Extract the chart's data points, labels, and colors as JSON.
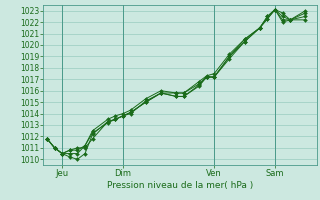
{
  "xlabel": "Pression niveau de la mer( hPa )",
  "bg_color": "#cce8e0",
  "grid_color": "#99ccc0",
  "line_color": "#1a6b1a",
  "marker_color": "#1a6b1a",
  "ylim": [
    1009.5,
    1023.5
  ],
  "yticks": [
    1010,
    1011,
    1012,
    1013,
    1014,
    1015,
    1016,
    1017,
    1018,
    1019,
    1020,
    1021,
    1022,
    1023
  ],
  "xtick_labels": [
    "Jeu",
    "Dim",
    "Ven",
    "Sam"
  ],
  "lines": [
    {
      "x": [
        0,
        1,
        2,
        3,
        4,
        5,
        6,
        8,
        9,
        10,
        11,
        13,
        15,
        17,
        18,
        20,
        21,
        22,
        24,
        26,
        28,
        29,
        30,
        31,
        32,
        34
      ],
      "y": [
        1011.8,
        1011.0,
        1010.5,
        1010.8,
        1011.0,
        1011.0,
        1011.8,
        1013.3,
        1013.5,
        1013.8,
        1014.1,
        1015.0,
        1015.8,
        1015.8,
        1015.8,
        1016.6,
        1017.2,
        1017.2,
        1019.0,
        1020.5,
        1021.5,
        1022.5,
        1023.1,
        1022.8,
        1022.2,
        1023.0
      ]
    },
    {
      "x": [
        0,
        1,
        2,
        3,
        4,
        5,
        6,
        8,
        9,
        10,
        11,
        13,
        15,
        17,
        18,
        20,
        21,
        22,
        24,
        26,
        28,
        29,
        30,
        31,
        32,
        34
      ],
      "y": [
        1011.8,
        1011.0,
        1010.5,
        1010.2,
        1010.0,
        1010.5,
        1012.2,
        1013.3,
        1013.5,
        1013.8,
        1014.1,
        1015.0,
        1015.8,
        1015.5,
        1015.5,
        1016.4,
        1017.2,
        1017.2,
        1018.8,
        1020.3,
        1021.5,
        1022.3,
        1023.1,
        1022.5,
        1022.2,
        1022.2
      ]
    },
    {
      "x": [
        0,
        1,
        2,
        3,
        4,
        5,
        6,
        8,
        9,
        10,
        11,
        13,
        15,
        17,
        18,
        20,
        21,
        22,
        24,
        26,
        28,
        29,
        30,
        31,
        32,
        34
      ],
      "y": [
        1011.8,
        1011.0,
        1010.5,
        1010.8,
        1010.8,
        1011.2,
        1012.5,
        1013.5,
        1013.8,
        1014.0,
        1014.3,
        1015.3,
        1016.0,
        1015.8,
        1015.8,
        1016.8,
        1017.3,
        1017.5,
        1019.2,
        1020.5,
        1021.5,
        1022.5,
        1023.1,
        1022.0,
        1022.2,
        1022.8
      ]
    },
    {
      "x": [
        0,
        1,
        2,
        3,
        4,
        5,
        6,
        8,
        9,
        10,
        11,
        13,
        15,
        17,
        18,
        20,
        21,
        22,
        24,
        26,
        28,
        29,
        30,
        31,
        32,
        34
      ],
      "y": [
        1011.8,
        1011.0,
        1010.5,
        1010.5,
        1010.5,
        1011.2,
        1012.3,
        1013.2,
        1013.5,
        1013.8,
        1014.0,
        1015.1,
        1015.8,
        1015.5,
        1015.5,
        1016.5,
        1017.2,
        1017.2,
        1019.0,
        1020.3,
        1021.5,
        1022.3,
        1023.1,
        1022.2,
        1022.2,
        1022.5
      ]
    }
  ],
  "xtick_x": [
    2,
    10,
    22,
    30
  ],
  "vline_x": [
    2,
    10,
    22,
    30
  ],
  "xlim": [
    -0.5,
    35.5
  ]
}
